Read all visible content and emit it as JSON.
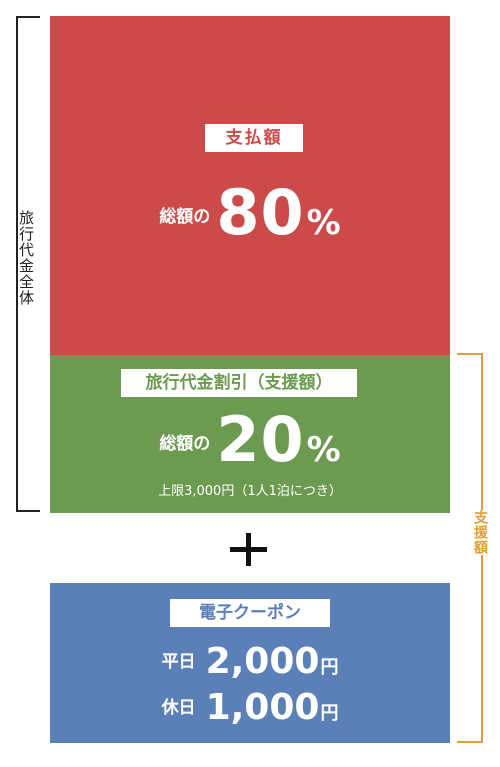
{
  "total_label": "旅行代金全体",
  "support_label": "支援額",
  "payment": {
    "tag": "支払額",
    "prefix": "総額の",
    "value": "80",
    "unit": "%",
    "color": "#cd4a4a"
  },
  "discount": {
    "tag": "旅行代金割引（支援額）",
    "prefix": "総額の",
    "value": "20",
    "unit": "%",
    "note": "上限3,000円（1人1泊につき）",
    "color": "#6c9a50"
  },
  "plus_symbol": "plus",
  "coupon": {
    "tag": "電子クーポン",
    "color": "#5b80b8",
    "rows": [
      {
        "day": "平日",
        "amount": "2,000",
        "unit": "円"
      },
      {
        "day": "休日",
        "amount": "1,000",
        "unit": "円"
      }
    ]
  }
}
